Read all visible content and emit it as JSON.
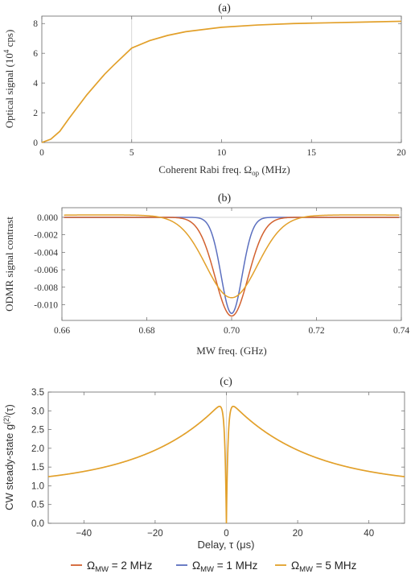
{
  "chart_data": [
    {
      "type": "line",
      "panel_label": "(a)",
      "xlabel": "Coherent Rabi freq. Ω_op (MHz)",
      "xlabel_main": "Coherent Rabi freq. Ω",
      "xlabel_sub": "op",
      "xlabel_tail": " (MHz)",
      "ylabel": "Optical signal (10^4 cps)",
      "ylabel_main": "Optical signal (10",
      "ylabel_sup": "4",
      "ylabel_tail": " cps)",
      "xlim": [
        0,
        20
      ],
      "ylim": [
        0,
        8.5
      ],
      "xticks": [
        0,
        5,
        10,
        15,
        20
      ],
      "yticks": [
        0,
        2,
        4,
        6,
        8
      ],
      "grid": "vertical line at x = 5",
      "series": [
        {
          "color": "#E2A02A",
          "x": [
            0,
            0.5,
            1,
            1.5,
            2,
            2.5,
            3,
            3.5,
            4,
            5,
            6,
            7,
            8,
            10,
            12,
            14,
            16,
            18,
            20
          ],
          "y": [
            0,
            0.22,
            0.75,
            1.6,
            2.4,
            3.2,
            3.9,
            4.6,
            5.2,
            6.35,
            6.85,
            7.2,
            7.45,
            7.75,
            7.9,
            8.0,
            8.05,
            8.1,
            8.15
          ]
        }
      ]
    },
    {
      "type": "line",
      "panel_label": "(b)",
      "xlabel": "MW freq. (GHz)",
      "ylabel": "ODMR signal contrast",
      "xlim": [
        0.66,
        0.74
      ],
      "ylim": [
        -0.0118,
        0.0011
      ],
      "xticks": [
        "0.66",
        "0.68",
        "0.70",
        "0.72",
        "0.74"
      ],
      "yticks": [
        "0.000",
        "-0.002",
        "-0.004",
        "-0.006",
        "-0.008",
        "-0.010"
      ],
      "xtick_values": [
        0.66,
        0.68,
        0.7,
        0.72,
        0.74
      ],
      "ytick_values": [
        0,
        -0.002,
        -0.004,
        -0.006,
        -0.008,
        -0.01
      ],
      "grid": "horizontal line at y = 0",
      "series": [
        {
          "color": "#5B6FBF",
          "center": 0.7,
          "depth": -0.011,
          "width": 0.0035,
          "overshoot": 0
        },
        {
          "color": "#D2612F",
          "center": 0.7,
          "depth": -0.0113,
          "width": 0.0055,
          "overshoot": 0
        },
        {
          "color": "#E2A02A",
          "center": 0.7,
          "depth": -0.0092,
          "width": 0.0085,
          "overshoot": 0.0003
        }
      ]
    },
    {
      "type": "line",
      "panel_label": "(c)",
      "xlabel": "Delay, τ (μs)",
      "ylabel": "CW steady-state g^(2)(τ)",
      "ylabel_main": "CW steady-state g",
      "ylabel_sup": "(2)",
      "ylabel_tail": "(τ)",
      "xlim": [
        -50,
        50
      ],
      "ylim": [
        0,
        3.5
      ],
      "xticks": [
        -40,
        -20,
        0,
        20,
        40
      ],
      "yticks": [
        "0.0",
        "0.5",
        "1.0",
        "1.5",
        "2.0",
        "2.5",
        "3.0",
        "3.5"
      ],
      "ytick_values": [
        0,
        0.5,
        1.0,
        1.5,
        2.0,
        2.5,
        3.0,
        3.5
      ],
      "grid": "vertical line at x = 0",
      "series": [
        {
          "color": "#E2A02A",
          "peak": 3.36,
          "floor": 1.0,
          "decay": 22,
          "dip_width": 0.45
        }
      ]
    }
  ],
  "legend": {
    "placement": "bottom",
    "entries": [
      {
        "symbol": "Ω",
        "sub": "MW",
        "value": " = 2 MHz",
        "color": "#D2612F"
      },
      {
        "symbol": "Ω",
        "sub": "MW",
        "value": " = 1 MHz",
        "color": "#5B6FBF"
      },
      {
        "symbol": "Ω",
        "sub": "MW",
        "value": " = 5 MHz",
        "color": "#E2A02A"
      }
    ]
  }
}
